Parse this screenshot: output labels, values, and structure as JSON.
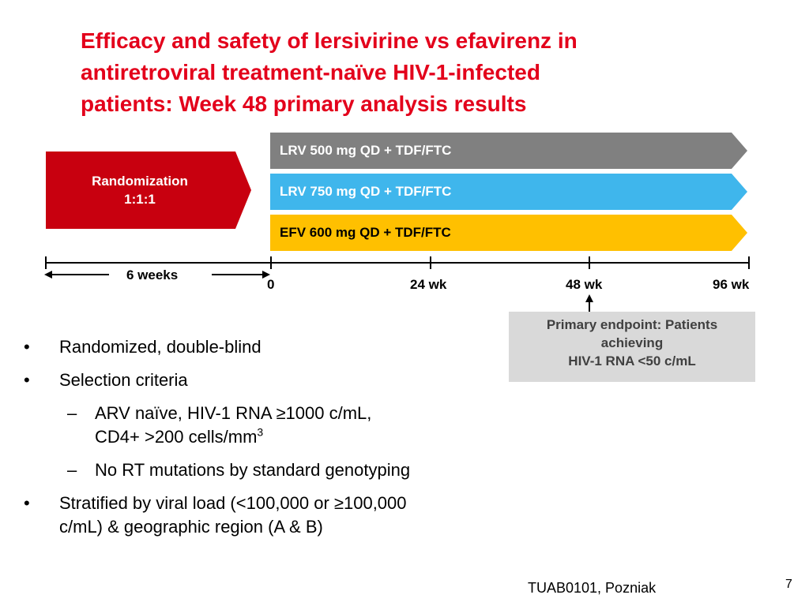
{
  "title": {
    "line1": "Efficacy and safety of lersivirine vs efavirenz in",
    "line2": "antiretroviral treatment-naïve HIV-1-infected",
    "line3": "patients: Week 48 primary analysis results"
  },
  "randomization": {
    "line1": "Randomization",
    "line2": "1:1:1",
    "color": "#c8000f"
  },
  "arms": [
    {
      "label": "LRV 500 mg QD + TDF/FTC",
      "color": "#808080",
      "text_color": "#ffffff"
    },
    {
      "label": "LRV 750 mg QD + TDF/FTC",
      "color": "#3fb6ec",
      "text_color": "#ffffff"
    },
    {
      "label": "EFV 600 mg QD + TDF/FTC",
      "color": "#ffc000",
      "text_color": "#000000"
    }
  ],
  "timeline": {
    "screening_label": "6 weeks",
    "ticks": [
      "0",
      "24 wk",
      "48 wk",
      "96 wk"
    ]
  },
  "endpoint": {
    "line1": "Primary endpoint: Patients",
    "line2": "achieving",
    "line3": "HIV-1 RNA <50 c/mL"
  },
  "bullets": {
    "item1": "Randomized, double-blind",
    "item2": "Selection criteria",
    "sub1_line1": "ARV naïve, HIV-1 RNA ≥1000 c/mL,",
    "sub1_line2": "CD4+ >200 cells/mm",
    "sub1_sup": "3",
    "sub2": "No RT mutations by standard genotyping",
    "item3_line1": "Stratified by viral load (<100,000 or ≥100,000",
    "item3_line2": "c/mL) & geographic region (A & B)",
    "bullet_marker": "•",
    "dash_marker": "–"
  },
  "footer": {
    "reference": "TUAB0101, Pozniak",
    "page_number": "7"
  }
}
